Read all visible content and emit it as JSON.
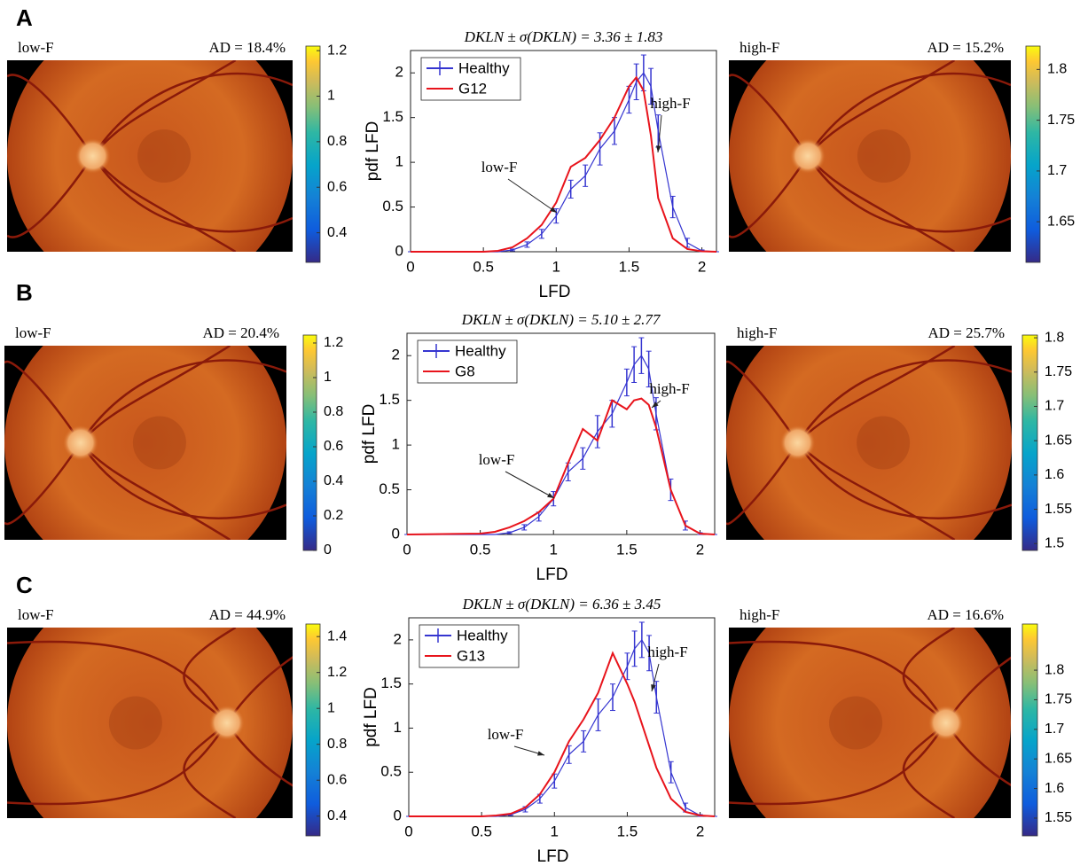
{
  "panels": [
    {
      "label": "A",
      "left": {
        "caption": "low-F",
        "ad": "AD = 18.4%",
        "colorbar": {
          "lim": [
            0.27,
            1.22
          ],
          "ticks": [
            0.4,
            0.6,
            0.8,
            1,
            1.2
          ]
        }
      },
      "right": {
        "caption": "high-F",
        "ad": "AD = 15.2%",
        "colorbar": {
          "lim": [
            1.61,
            1.823
          ],
          "ticks": [
            1.65,
            1.7,
            1.75,
            1.8
          ]
        }
      }
    },
    {
      "label": "B",
      "left": {
        "caption": "low-F",
        "ad": "AD = 20.4%",
        "colorbar": {
          "lim": [
            0,
            1.246
          ],
          "ticks": [
            0,
            0.2,
            0.4,
            0.6,
            0.8,
            1,
            1.2
          ]
        }
      },
      "right": {
        "caption": "high-F",
        "ad": "AD = 25.7%",
        "colorbar": {
          "lim": [
            1.49,
            1.804
          ],
          "ticks": [
            1.5,
            1.55,
            1.6,
            1.65,
            1.7,
            1.75,
            1.8
          ]
        }
      }
    },
    {
      "label": "C",
      "left": {
        "caption": "low-F",
        "ad": "AD = 44.9%",
        "colorbar": {
          "lim": [
            0.29,
            1.47
          ],
          "ticks": [
            0.4,
            0.6,
            0.8,
            1,
            1.2,
            1.4
          ]
        }
      },
      "right": {
        "caption": "high-F",
        "ad": "AD = 16.6%",
        "colorbar": {
          "lim": [
            1.52,
            1.878
          ],
          "ticks": [
            1.55,
            1.6,
            1.65,
            1.7,
            1.75,
            1.8
          ]
        }
      }
    }
  ],
  "chart_data": [
    {
      "type": "line",
      "title": "DKLN ± σ(DKLN) = 3.36 ± 1.83",
      "x_label": "LFD",
      "y_label": "pdf LFD",
      "x": [
        0,
        0.5,
        0.6,
        0.7,
        0.8,
        0.9,
        1.0,
        1.1,
        1.2,
        1.3,
        1.4,
        1.5,
        1.55,
        1.6,
        1.65,
        1.7,
        1.8,
        1.9,
        2.0,
        2.1
      ],
      "series": [
        {
          "name": "Healthy",
          "color": "#3535d0",
          "values": [
            0,
            0,
            0,
            0.02,
            0.08,
            0.2,
            0.4,
            0.7,
            0.85,
            1.15,
            1.35,
            1.7,
            1.9,
            2.0,
            1.85,
            1.35,
            0.5,
            0.1,
            0.01,
            0
          ],
          "errors": [
            0,
            0,
            0,
            0.01,
            0.03,
            0.05,
            0.08,
            0.1,
            0.12,
            0.18,
            0.15,
            0.15,
            0.2,
            0.2,
            0.2,
            0.18,
            0.12,
            0.05,
            0.01,
            0
          ]
        },
        {
          "name": "G12",
          "color": "#e8141c",
          "values": [
            0,
            0,
            0.01,
            0.05,
            0.15,
            0.3,
            0.55,
            0.95,
            1.05,
            1.25,
            1.5,
            1.85,
            1.95,
            1.8,
            1.3,
            0.6,
            0.15,
            0.03,
            0.005,
            0
          ]
        }
      ],
      "annotations": [
        "low-F",
        "high-F"
      ],
      "xlim": [
        0,
        2.1
      ],
      "xticks": [
        0,
        0.5,
        1,
        1.5,
        2
      ],
      "ylim": [
        0,
        2.25
      ],
      "yticks": [
        0,
        0.5,
        1,
        1.5,
        2
      ],
      "legend": "upper-left"
    },
    {
      "type": "line",
      "title": "DKLN ± σ(DKLN) = 5.10 ± 2.77",
      "x_label": "LFD",
      "y_label": "pdf LFD",
      "x": [
        0,
        0.5,
        0.6,
        0.7,
        0.8,
        0.9,
        1.0,
        1.1,
        1.2,
        1.3,
        1.4,
        1.5,
        1.55,
        1.6,
        1.65,
        1.7,
        1.8,
        1.9,
        2.0,
        2.1
      ],
      "series": [
        {
          "name": "Healthy",
          "color": "#3535d0",
          "values": [
            0,
            0,
            0,
            0.02,
            0.08,
            0.2,
            0.4,
            0.7,
            0.85,
            1.15,
            1.35,
            1.7,
            1.9,
            2.0,
            1.85,
            1.35,
            0.5,
            0.1,
            0.01,
            0
          ],
          "errors": [
            0,
            0,
            0,
            0.01,
            0.03,
            0.05,
            0.08,
            0.1,
            0.12,
            0.18,
            0.15,
            0.15,
            0.2,
            0.2,
            0.2,
            0.18,
            0.12,
            0.05,
            0.01,
            0
          ]
        },
        {
          "name": "G8",
          "color": "#e8141c",
          "values": [
            0,
            0.01,
            0.03,
            0.08,
            0.15,
            0.25,
            0.4,
            0.8,
            1.18,
            1.05,
            1.5,
            1.4,
            1.5,
            1.52,
            1.45,
            1.2,
            0.5,
            0.1,
            0.01,
            0
          ]
        }
      ],
      "annotations": [
        "low-F",
        "high-F"
      ],
      "xlim": [
        0,
        2.1
      ],
      "xticks": [
        0,
        0.5,
        1,
        1.5,
        2
      ],
      "ylim": [
        0,
        2.25
      ],
      "yticks": [
        0,
        0.5,
        1,
        1.5,
        2
      ],
      "legend": "upper-left"
    },
    {
      "type": "line",
      "title": "DKLN ± σ(DKLN) = 6.36 ± 3.45",
      "x_label": "LFD",
      "y_label": "pdf LFD",
      "x": [
        0,
        0.5,
        0.6,
        0.7,
        0.8,
        0.9,
        1.0,
        1.1,
        1.2,
        1.3,
        1.4,
        1.5,
        1.55,
        1.6,
        1.65,
        1.7,
        1.8,
        1.9,
        2.0,
        2.1
      ],
      "series": [
        {
          "name": "Healthy",
          "color": "#3535d0",
          "values": [
            0,
            0,
            0,
            0.02,
            0.08,
            0.2,
            0.4,
            0.7,
            0.85,
            1.15,
            1.35,
            1.7,
            1.9,
            2.0,
            1.85,
            1.35,
            0.5,
            0.1,
            0.01,
            0
          ],
          "errors": [
            0,
            0,
            0,
            0.01,
            0.03,
            0.05,
            0.08,
            0.1,
            0.12,
            0.18,
            0.15,
            0.15,
            0.2,
            0.2,
            0.2,
            0.18,
            0.12,
            0.05,
            0.01,
            0
          ]
        },
        {
          "name": "G13",
          "color": "#e8141c",
          "values": [
            0,
            0,
            0.01,
            0.03,
            0.1,
            0.25,
            0.5,
            0.85,
            1.1,
            1.4,
            1.85,
            1.5,
            1.3,
            1.05,
            0.8,
            0.55,
            0.2,
            0.05,
            0.01,
            0
          ]
        }
      ],
      "annotations": [
        "low-F",
        "high-F"
      ],
      "xlim": [
        0,
        2.1
      ],
      "xticks": [
        0,
        0.5,
        1,
        1.5,
        2
      ],
      "ylim": [
        0,
        2.25
      ],
      "yticks": [
        0,
        0.5,
        1,
        1.5,
        2
      ],
      "legend": "upper-left"
    }
  ]
}
